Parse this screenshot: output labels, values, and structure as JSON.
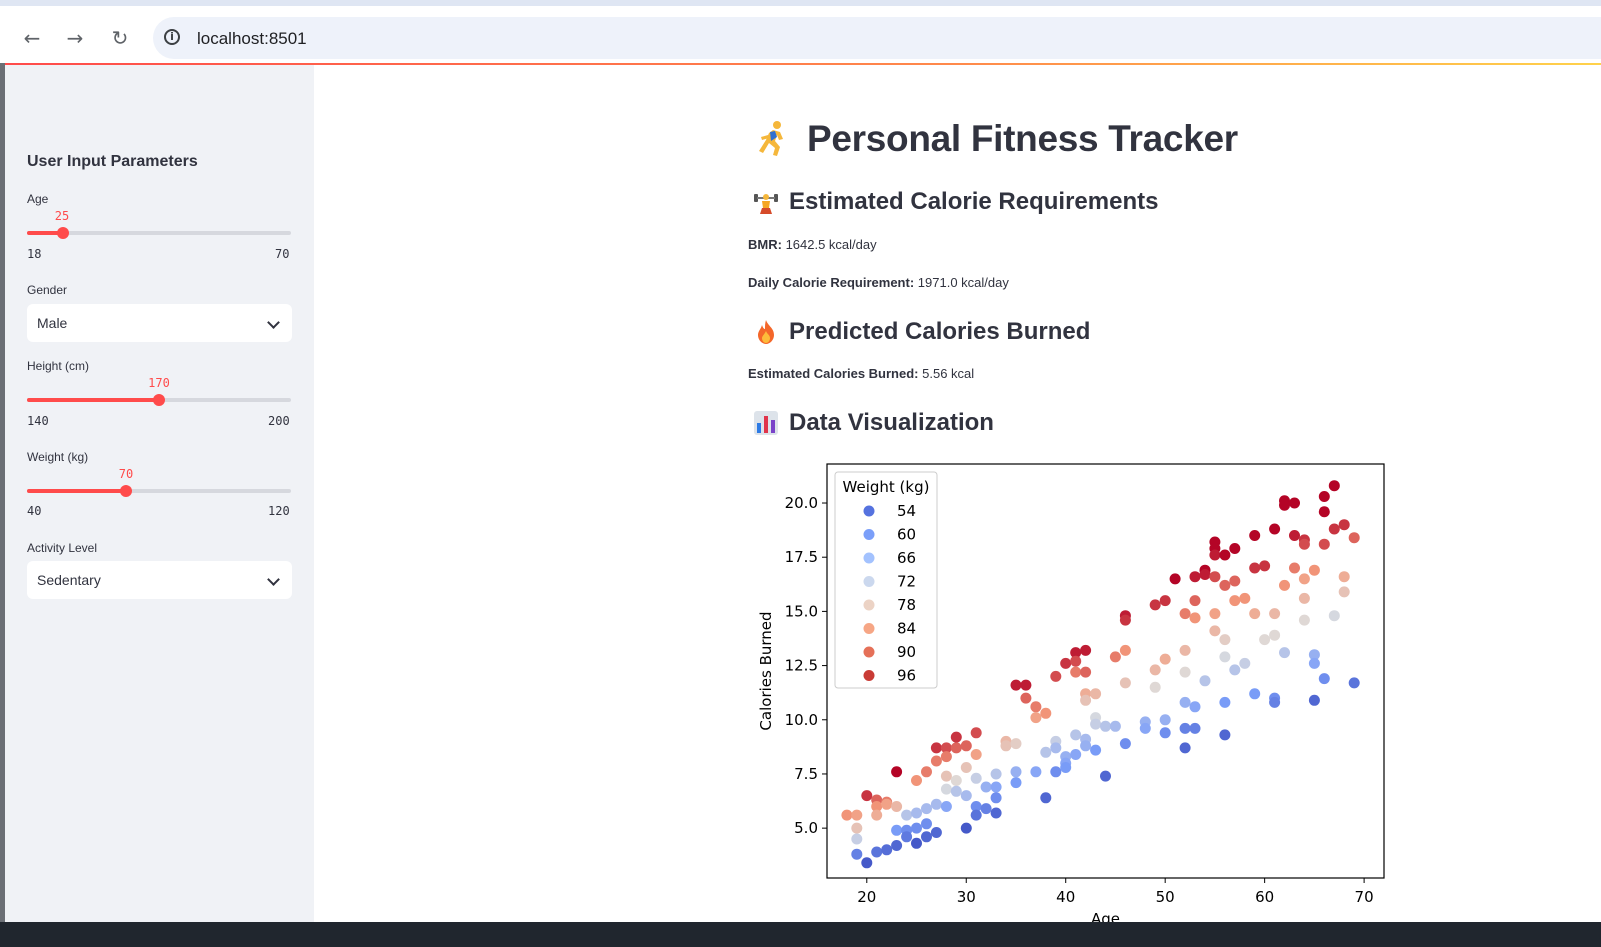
{
  "browser": {
    "url": "localhost:8501",
    "back_icon": "arrow-left-icon",
    "forward_icon": "arrow-right-icon",
    "reload_icon": "reload-icon",
    "site_info_icon": "info-icon"
  },
  "sidebar": {
    "title": "User Input Parameters",
    "age": {
      "label": "Age",
      "value": "25",
      "min": "18",
      "max": "70",
      "fraction": 0.1346
    },
    "gender": {
      "label": "Gender",
      "selected": "Male"
    },
    "height": {
      "label": "Height (cm)",
      "value": "170",
      "min": "140",
      "max": "200",
      "fraction": 0.5
    },
    "weight": {
      "label": "Weight (kg)",
      "value": "70",
      "min": "40",
      "max": "120",
      "fraction": 0.375
    },
    "activity": {
      "label": "Activity Level",
      "selected": "Sedentary"
    }
  },
  "main": {
    "title": "Personal Fitness Tracker",
    "section1": {
      "title": "Estimated Calorie Requirements",
      "bmr_label": "BMR:",
      "bmr_value": "1642.5 kcal/day",
      "daily_label": "Daily Calorie Requirement:",
      "daily_value": "1971.0 kcal/day"
    },
    "section2": {
      "title": "Predicted Calories Burned",
      "burned_label": "Estimated Calories Burned:",
      "burned_value": "5.56 kcal"
    },
    "section3": {
      "title": "Data Visualization"
    }
  },
  "colors": {
    "accent": "#ff4b4b",
    "sidebar_bg": "#f0f2f6",
    "text": "#31333f"
  },
  "chart_data": {
    "type": "scatter",
    "xlabel": "Age",
    "ylabel": "Calories Burned",
    "xlim": [
      16,
      72
    ],
    "ylim": [
      2.7,
      21.8
    ],
    "xticks": [
      "20",
      "30",
      "40",
      "50",
      "60",
      "70"
    ],
    "yticks": [
      "5.0",
      "7.5",
      "10.0",
      "12.5",
      "15.0",
      "17.5",
      "20.0"
    ],
    "xtick_values": [
      20,
      30,
      40,
      50,
      60,
      70
    ],
    "ytick_values": [
      5.0,
      7.5,
      10.0,
      12.5,
      15.0,
      17.5,
      20.0
    ],
    "legend_title": "Weight (kg)",
    "legend_position": "upper-left",
    "hue_range": [
      50,
      100
    ],
    "legend": [
      {
        "label": "54",
        "color": "#5572df"
      },
      {
        "label": "60",
        "color": "#7b9ff9"
      },
      {
        "label": "66",
        "color": "#a3c2fe"
      },
      {
        "label": "72",
        "color": "#cbd8ee"
      },
      {
        "label": "78",
        "color": "#ecd3c5"
      },
      {
        "label": "84",
        "color": "#f6a685"
      },
      {
        "label": "90",
        "color": "#e57058"
      },
      {
        "label": "96",
        "color": "#c93b35"
      }
    ],
    "points": [
      [
        18,
        5.6,
        88
      ],
      [
        19,
        5.6,
        86
      ],
      [
        19,
        5.0,
        80
      ],
      [
        19,
        4.5,
        72
      ],
      [
        19,
        3.8,
        58
      ],
      [
        20,
        3.4,
        52
      ],
      [
        20,
        6.5,
        96
      ],
      [
        21,
        6.3,
        92
      ],
      [
        21,
        6.0,
        88
      ],
      [
        21,
        5.6,
        84
      ],
      [
        21,
        3.9,
        56
      ],
      [
        22,
        6.2,
        90
      ],
      [
        22,
        6.1,
        86
      ],
      [
        22,
        4.0,
        55
      ],
      [
        23,
        7.6,
        100
      ],
      [
        23,
        6.0,
        82
      ],
      [
        23,
        4.9,
        62
      ],
      [
        23,
        4.2,
        54
      ],
      [
        24,
        5.6,
        70
      ],
      [
        24,
        4.9,
        60
      ],
      [
        24,
        4.6,
        57
      ],
      [
        25,
        7.2,
        88
      ],
      [
        25,
        5.7,
        68
      ],
      [
        25,
        5.0,
        60
      ],
      [
        25,
        4.3,
        52
      ],
      [
        26,
        7.6,
        90
      ],
      [
        26,
        5.9,
        68
      ],
      [
        26,
        5.2,
        60
      ],
      [
        26,
        4.6,
        54
      ],
      [
        27,
        8.7,
        96
      ],
      [
        27,
        8.1,
        90
      ],
      [
        27,
        6.1,
        68
      ],
      [
        27,
        4.8,
        54
      ],
      [
        28,
        8.7,
        94
      ],
      [
        28,
        8.3,
        90
      ],
      [
        28,
        7.4,
        80
      ],
      [
        28,
        6.8,
        74
      ],
      [
        28,
        6.0,
        64
      ],
      [
        29,
        9.2,
        96
      ],
      [
        29,
        8.7,
        92
      ],
      [
        29,
        7.2,
        76
      ],
      [
        29,
        6.7,
        70
      ],
      [
        30,
        8.8,
        92
      ],
      [
        30,
        7.8,
        80
      ],
      [
        30,
        6.5,
        68
      ],
      [
        30,
        5.0,
        52
      ],
      [
        31,
        9.4,
        94
      ],
      [
        31,
        8.4,
        86
      ],
      [
        31,
        7.3,
        72
      ],
      [
        31,
        6.0,
        60
      ],
      [
        31,
        5.6,
        56
      ],
      [
        32,
        6.9,
        66
      ],
      [
        32,
        5.9,
        58
      ],
      [
        33,
        7.5,
        70
      ],
      [
        33,
        6.9,
        64
      ],
      [
        33,
        6.4,
        60
      ],
      [
        33,
        5.7,
        54
      ],
      [
        34,
        9.0,
        82
      ],
      [
        34,
        8.8,
        80
      ],
      [
        35,
        11.6,
        98
      ],
      [
        35,
        8.9,
        78
      ],
      [
        35,
        7.6,
        66
      ],
      [
        35,
        7.1,
        62
      ],
      [
        36,
        11.6,
        98
      ],
      [
        36,
        11.0,
        92
      ],
      [
        37,
        10.6,
        90
      ],
      [
        37,
        10.1,
        86
      ],
      [
        37,
        7.6,
        64
      ],
      [
        38,
        10.3,
        88
      ],
      [
        38,
        8.5,
        70
      ],
      [
        38,
        6.4,
        54
      ],
      [
        39,
        12.0,
        94
      ],
      [
        39,
        9.0,
        72
      ],
      [
        39,
        8.7,
        68
      ],
      [
        39,
        7.6,
        60
      ],
      [
        40,
        12.6,
        96
      ],
      [
        40,
        8.3,
        66
      ],
      [
        40,
        8.0,
        64
      ],
      [
        40,
        7.8,
        62
      ],
      [
        41,
        13.1,
        98
      ],
      [
        41,
        12.7,
        94
      ],
      [
        41,
        12.2,
        90
      ],
      [
        41,
        9.3,
        70
      ],
      [
        41,
        8.4,
        64
      ],
      [
        42,
        13.2,
        98
      ],
      [
        42,
        12.2,
        92
      ],
      [
        42,
        11.2,
        84
      ],
      [
        42,
        10.9,
        80
      ],
      [
        42,
        9.1,
        68
      ],
      [
        42,
        8.8,
        66
      ],
      [
        43,
        11.2,
        82
      ],
      [
        43,
        10.1,
        74
      ],
      [
        43,
        9.8,
        72
      ],
      [
        43,
        8.6,
        62
      ],
      [
        44,
        9.7,
        70
      ],
      [
        44,
        7.4,
        54
      ],
      [
        45,
        12.9,
        90
      ],
      [
        45,
        9.7,
        68
      ],
      [
        46,
        14.8,
        98
      ],
      [
        46,
        14.6,
        96
      ],
      [
        46,
        13.2,
        88
      ],
      [
        46,
        11.7,
        80
      ],
      [
        46,
        8.9,
        60
      ],
      [
        48,
        9.9,
        66
      ],
      [
        48,
        9.6,
        64
      ],
      [
        49,
        15.3,
        96
      ],
      [
        49,
        12.3,
        82
      ],
      [
        49,
        11.5,
        76
      ],
      [
        50,
        15.5,
        96
      ],
      [
        50,
        12.8,
        84
      ],
      [
        50,
        10.0,
        66
      ],
      [
        50,
        9.4,
        60
      ],
      [
        51,
        16.5,
        100
      ],
      [
        52,
        14.9,
        90
      ],
      [
        52,
        13.2,
        82
      ],
      [
        52,
        12.2,
        76
      ],
      [
        52,
        10.8,
        66
      ],
      [
        52,
        9.6,
        58
      ],
      [
        52,
        8.7,
        54
      ],
      [
        53,
        16.6,
        98
      ],
      [
        53,
        15.5,
        92
      ],
      [
        53,
        14.7,
        88
      ],
      [
        53,
        10.6,
        64
      ],
      [
        53,
        9.6,
        58
      ],
      [
        54,
        16.9,
        100
      ],
      [
        54,
        16.7,
        98
      ],
      [
        54,
        11.8,
        70
      ],
      [
        55,
        18.2,
        104
      ],
      [
        55,
        17.9,
        100
      ],
      [
        55,
        17.6,
        98
      ],
      [
        55,
        16.6,
        94
      ],
      [
        55,
        14.9,
        86
      ],
      [
        55,
        14.1,
        82
      ],
      [
        56,
        17.6,
        100
      ],
      [
        56,
        16.2,
        92
      ],
      [
        56,
        13.7,
        78
      ],
      [
        56,
        12.9,
        74
      ],
      [
        56,
        10.8,
        62
      ],
      [
        56,
        9.3,
        54
      ],
      [
        57,
        17.9,
        100
      ],
      [
        57,
        16.4,
        92
      ],
      [
        57,
        15.5,
        88
      ],
      [
        57,
        12.3,
        70
      ],
      [
        58,
        15.6,
        88
      ],
      [
        58,
        12.6,
        72
      ],
      [
        59,
        18.5,
        100
      ],
      [
        59,
        17.0,
        96
      ],
      [
        59,
        14.9,
        84
      ],
      [
        59,
        11.2,
        62
      ],
      [
        60,
        17.1,
        96
      ],
      [
        60,
        13.7,
        76
      ],
      [
        61,
        18.8,
        100
      ],
      [
        61,
        14.9,
        82
      ],
      [
        61,
        13.9,
        76
      ],
      [
        61,
        11.0,
        60
      ],
      [
        61,
        10.8,
        58
      ],
      [
        62,
        20.1,
        106
      ],
      [
        62,
        19.9,
        104
      ],
      [
        62,
        16.2,
        88
      ],
      [
        62,
        13.1,
        70
      ],
      [
        63,
        20.0,
        104
      ],
      [
        63,
        18.5,
        98
      ],
      [
        63,
        17.0,
        90
      ],
      [
        64,
        18.3,
        96
      ],
      [
        64,
        18.1,
        94
      ],
      [
        64,
        16.5,
        86
      ],
      [
        64,
        14.6,
        76
      ],
      [
        64,
        15.6,
        82
      ],
      [
        65,
        16.9,
        88
      ],
      [
        65,
        13.0,
        66
      ],
      [
        65,
        12.6,
        64
      ],
      [
        65,
        10.9,
        54
      ],
      [
        66,
        20.3,
        104
      ],
      [
        66,
        19.6,
        100
      ],
      [
        66,
        18.1,
        94
      ],
      [
        66,
        11.9,
        60
      ],
      [
        67,
        20.8,
        106
      ],
      [
        67,
        18.8,
        96
      ],
      [
        67,
        14.8,
        74
      ],
      [
        68,
        19.0,
        96
      ],
      [
        68,
        16.6,
        84
      ],
      [
        68,
        15.9,
        80
      ],
      [
        69,
        18.4,
        92
      ],
      [
        69,
        11.7,
        56
      ]
    ]
  }
}
